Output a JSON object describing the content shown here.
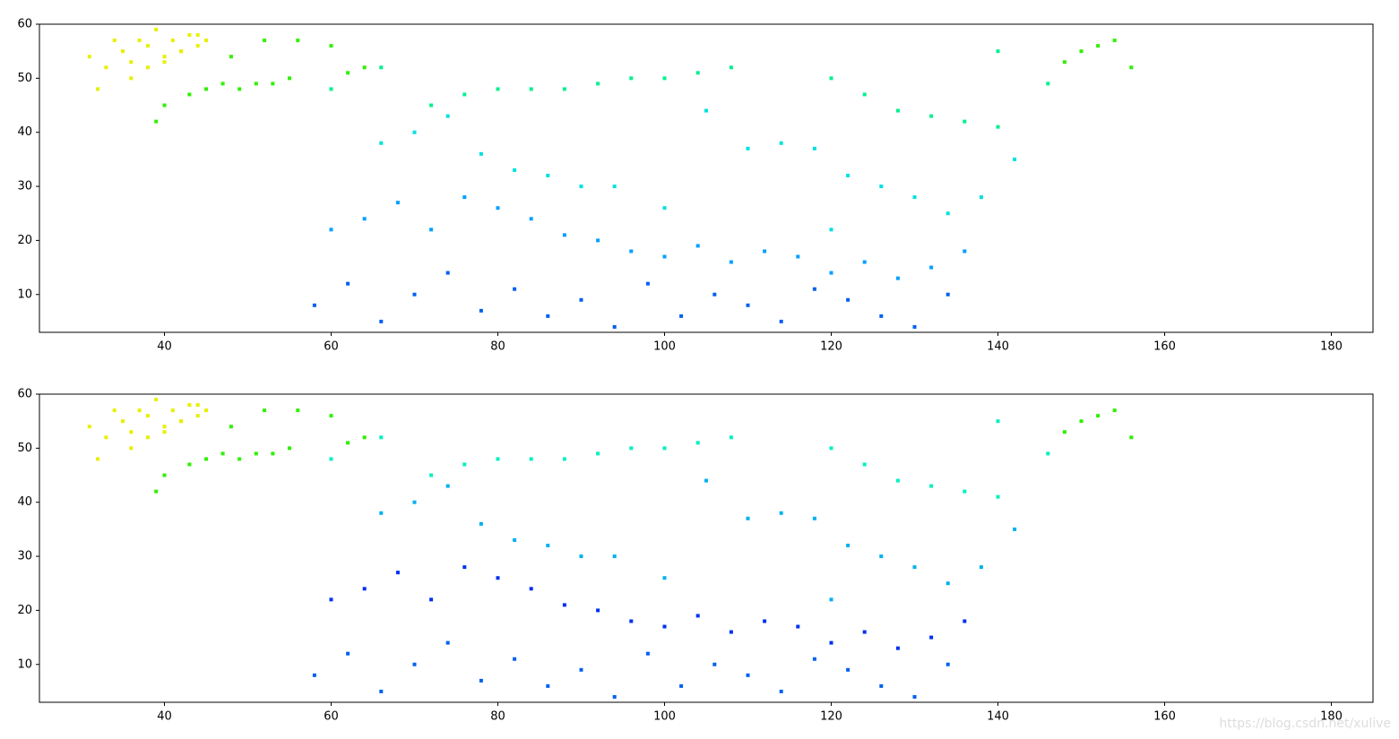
{
  "chart_data": [
    {
      "type": "scatter",
      "xlim": [
        25,
        185
      ],
      "ylim": [
        3,
        60
      ],
      "xticks": [
        40,
        60,
        80,
        100,
        120,
        140,
        160,
        180
      ],
      "yticks": [
        10,
        20,
        30,
        40,
        50,
        60
      ],
      "series": [
        {
          "color": "#e6f000",
          "x": [
            31,
            32,
            33,
            34,
            35,
            36,
            37,
            38,
            39,
            40,
            41,
            42,
            43,
            44,
            45,
            36,
            38,
            40,
            42,
            44
          ],
          "y": [
            54,
            48,
            52,
            57,
            55,
            53,
            57,
            56,
            59,
            54,
            57,
            55,
            58,
            56,
            57,
            50,
            52,
            53,
            55,
            58
          ]
        },
        {
          "color": "#30f000",
          "x": [
            43,
            45,
            47,
            49,
            51,
            53,
            55,
            40,
            39,
            48,
            52,
            56,
            60,
            62,
            64,
            148,
            150,
            152,
            154,
            156
          ],
          "y": [
            47,
            48,
            49,
            48,
            49,
            49,
            50,
            45,
            42,
            54,
            57,
            57,
            56,
            51,
            52,
            53,
            55,
            56,
            57,
            52
          ]
        },
        {
          "color": "#00f090",
          "x": [
            72,
            76,
            80,
            84,
            88,
            92,
            96,
            100,
            104,
            108,
            120,
            124,
            128,
            132,
            136,
            140,
            60,
            66,
            140,
            146
          ],
          "y": [
            45,
            47,
            48,
            48,
            48,
            49,
            50,
            50,
            51,
            52,
            50,
            47,
            44,
            43,
            42,
            41,
            48,
            52,
            55,
            49
          ]
        },
        {
          "color": "#00e0e0",
          "x": [
            66,
            70,
            74,
            78,
            82,
            86,
            90,
            94,
            110,
            114,
            118,
            122,
            126,
            130,
            134,
            138,
            142,
            105,
            100,
            120
          ],
          "y": [
            38,
            40,
            43,
            36,
            33,
            32,
            30,
            30,
            37,
            38,
            37,
            32,
            30,
            28,
            25,
            28,
            35,
            44,
            26,
            22
          ]
        },
        {
          "color": "#00a0ff",
          "x": [
            60,
            64,
            68,
            72,
            76,
            80,
            84,
            88,
            92,
            96,
            100,
            104,
            108,
            112,
            116,
            120,
            124,
            128,
            132,
            136
          ],
          "y": [
            22,
            24,
            27,
            22,
            28,
            26,
            24,
            21,
            20,
            18,
            17,
            19,
            16,
            18,
            17,
            14,
            16,
            13,
            15,
            18
          ]
        },
        {
          "color": "#0060f0",
          "x": [
            58,
            62,
            66,
            70,
            74,
            78,
            82,
            86,
            90,
            94,
            98,
            102,
            106,
            110,
            114,
            118,
            122,
            126,
            130,
            134
          ],
          "y": [
            8,
            12,
            5,
            10,
            14,
            7,
            11,
            6,
            9,
            4,
            12,
            6,
            10,
            8,
            5,
            11,
            9,
            6,
            4,
            10
          ]
        }
      ]
    },
    {
      "type": "scatter",
      "xlim": [
        25,
        185
      ],
      "ylim": [
        3,
        60
      ],
      "xticks": [
        40,
        60,
        80,
        100,
        120,
        140,
        160,
        180
      ],
      "yticks": [
        10,
        20,
        30,
        40,
        50,
        60
      ],
      "series": [
        {
          "color": "#e6f000",
          "x": [
            31,
            32,
            33,
            34,
            35,
            36,
            37,
            38,
            39,
            40,
            41,
            42,
            43,
            44,
            45,
            36,
            38,
            40,
            42,
            44
          ],
          "y": [
            54,
            48,
            52,
            57,
            55,
            53,
            57,
            56,
            59,
            54,
            57,
            55,
            58,
            56,
            57,
            50,
            52,
            53,
            55,
            58
          ]
        },
        {
          "color": "#30f000",
          "x": [
            43,
            45,
            47,
            49,
            51,
            53,
            55,
            40,
            39,
            48,
            52,
            56,
            60,
            62,
            64,
            148,
            150,
            152,
            154,
            156
          ],
          "y": [
            47,
            48,
            49,
            48,
            49,
            49,
            50,
            45,
            42,
            54,
            57,
            57,
            56,
            51,
            52,
            53,
            55,
            56,
            57,
            52
          ]
        },
        {
          "color": "#00f0c0",
          "x": [
            72,
            76,
            80,
            84,
            88,
            92,
            96,
            100,
            104,
            108,
            120,
            124,
            128,
            132,
            136,
            140,
            60,
            66,
            140,
            146
          ],
          "y": [
            45,
            47,
            48,
            48,
            48,
            49,
            50,
            50,
            51,
            52,
            50,
            47,
            44,
            43,
            42,
            41,
            48,
            52,
            55,
            49
          ]
        },
        {
          "color": "#00b0f0",
          "x": [
            66,
            70,
            74,
            78,
            82,
            86,
            90,
            94,
            110,
            114,
            118,
            122,
            126,
            130,
            134,
            138,
            142,
            105,
            100,
            120
          ],
          "y": [
            38,
            40,
            43,
            36,
            33,
            32,
            30,
            30,
            37,
            38,
            37,
            32,
            30,
            28,
            25,
            28,
            35,
            44,
            26,
            22
          ]
        },
        {
          "color": "#0030f0",
          "x": [
            60,
            64,
            68,
            72,
            76,
            80,
            84,
            88,
            92,
            96,
            100,
            104,
            108,
            112,
            116,
            120,
            124,
            128,
            132,
            136
          ],
          "y": [
            22,
            24,
            27,
            22,
            28,
            26,
            24,
            21,
            20,
            18,
            17,
            19,
            16,
            18,
            17,
            14,
            16,
            13,
            15,
            18
          ]
        },
        {
          "color": "#0060f0",
          "x": [
            58,
            62,
            66,
            70,
            74,
            78,
            82,
            86,
            90,
            94,
            98,
            102,
            106,
            110,
            114,
            118,
            122,
            126,
            130,
            134
          ],
          "y": [
            8,
            12,
            5,
            10,
            14,
            7,
            11,
            6,
            9,
            4,
            12,
            6,
            10,
            8,
            5,
            11,
            9,
            6,
            4,
            10
          ]
        }
      ]
    }
  ],
  "watermark": "https://blog.csdn.net/xulive"
}
